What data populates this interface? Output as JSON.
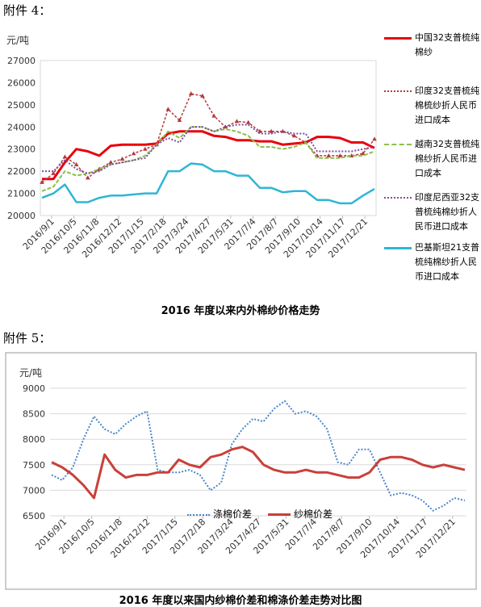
{
  "section4_label": "附件 4：",
  "section5_label": "附件 5：",
  "chart_data": [
    {
      "type": "line",
      "title": "2016 年度以来内外棉纱价格走势",
      "ylabel": "元/吨",
      "ylim": [
        20000,
        27000
      ],
      "yticks": [
        "20000",
        "21000",
        "22000",
        "23000",
        "24000",
        "25000",
        "26000",
        "27000"
      ],
      "x_ticks": [
        "2016/9/1",
        "2016/10/5",
        "2016/11/8",
        "2016/12/12",
        "2017/1/15",
        "2017/2/18",
        "2017/3/24",
        "2017/4/27",
        "2017/5/31",
        "2017/7/4",
        "2017/8/7",
        "2017/9/10",
        "2017/10/14",
        "2017/11/17",
        "2017/12/21"
      ],
      "legend_position": "right",
      "grid": false,
      "series": [
        {
          "name": "中国32支普梳纯棉纱",
          "color": "#e8000b",
          "style": "solid",
          "values": [
            21650,
            21650,
            22400,
            23000,
            22900,
            22700,
            23150,
            23200,
            23200,
            23200,
            23250,
            23700,
            23800,
            23800,
            23800,
            23600,
            23550,
            23400,
            23400,
            23350,
            23350,
            23200,
            23250,
            23300,
            23550,
            23550,
            23500,
            23300,
            23300,
            23050
          ]
        },
        {
          "name": "印度32支普梳纯棉梳纱折人民币进口成本",
          "color": "#b5383a",
          "style": "triangle",
          "values": [
            21500,
            21900,
            22650,
            22300,
            21700,
            22100,
            22400,
            22550,
            22800,
            23000,
            23200,
            24800,
            24300,
            25500,
            25400,
            24500,
            24000,
            24250,
            24200,
            23800,
            23800,
            23800,
            23600,
            23300,
            22700,
            22700,
            22700,
            22700,
            22800,
            23450
          ]
        },
        {
          "name": "越南32支普梳纯棉纱折人民币进口成本",
          "color": "#8dbf4a",
          "style": "dash",
          "values": [
            21100,
            21300,
            22000,
            21800,
            21900,
            22100,
            22300,
            22400,
            22500,
            22700,
            23200,
            23800,
            23500,
            24000,
            24000,
            23800,
            23900,
            23800,
            23600,
            23100,
            23100,
            23000,
            23100,
            23300,
            22600,
            22600,
            22600,
            22700,
            22700,
            22900
          ]
        },
        {
          "name": "印度尼西亚32支普梳纯棉纱折人民币进口成本",
          "color": "#7b4fa0",
          "style": "dots",
          "values": [
            22000,
            22000,
            22500,
            22100,
            21900,
            22000,
            22300,
            22400,
            22500,
            22600,
            23200,
            23500,
            23300,
            24000,
            24000,
            23800,
            24000,
            24100,
            24100,
            23700,
            23700,
            23800,
            23700,
            23700,
            22900,
            22900,
            22900,
            22900,
            23000,
            23100
          ]
        },
        {
          "name": "巴基斯坦21支普梳纯棉纱折人民币进口成本",
          "color": "#2fb5d6",
          "style": "solid",
          "values": [
            20800,
            21000,
            21400,
            20600,
            20600,
            20800,
            20900,
            20900,
            20950,
            21000,
            21000,
            22000,
            22000,
            22350,
            22300,
            22000,
            22000,
            21800,
            21800,
            21250,
            21250,
            21050,
            21100,
            21100,
            20700,
            20700,
            20550,
            20550,
            20900,
            21200
          ]
        }
      ]
    },
    {
      "type": "line",
      "title": "2016 年度以来国内纱棉价差和棉涤价差走势对比图",
      "ylabel": "元/吨",
      "ylim": [
        6500,
        9000
      ],
      "yticks": [
        "6500",
        "7000",
        "7500",
        "8000",
        "8500",
        "9000"
      ],
      "x_ticks": [
        "2016/9/1",
        "2016/10/5",
        "2016/11/8",
        "2016/12/12",
        "2017/1/15",
        "2017/2/18",
        "2017/3/24",
        "2017/4/27",
        "2017/5/31",
        "2017/7/4",
        "2017/8/7",
        "2017/9/10",
        "2017/10/14",
        "2017/11/17",
        "2017/12/21"
      ],
      "legend_position": "bottom",
      "grid": true,
      "series": [
        {
          "name": "涤棉价差",
          "color": "#4a86c8",
          "style": "dots",
          "values": [
            7300,
            7200,
            7450,
            8000,
            8450,
            8200,
            8100,
            8300,
            8450,
            8550,
            7400,
            7350,
            7350,
            7400,
            7300,
            7000,
            7150,
            7900,
            8200,
            8400,
            8350,
            8600,
            8750,
            8500,
            8550,
            8450,
            8200,
            7550,
            7500,
            7800,
            7800,
            7350,
            6900,
            6950,
            6900,
            6800,
            6600,
            6700,
            6850,
            6800
          ]
        },
        {
          "name": "纱棉价差",
          "color": "#c9403a",
          "style": "solid",
          "values": [
            7550,
            7450,
            7300,
            7100,
            6850,
            7700,
            7400,
            7250,
            7300,
            7300,
            7350,
            7350,
            7600,
            7500,
            7450,
            7650,
            7700,
            7800,
            7850,
            7750,
            7500,
            7400,
            7350,
            7350,
            7400,
            7350,
            7350,
            7300,
            7250,
            7250,
            7350,
            7600,
            7650,
            7650,
            7600,
            7500,
            7450,
            7500,
            7450,
            7400
          ]
        }
      ]
    }
  ]
}
